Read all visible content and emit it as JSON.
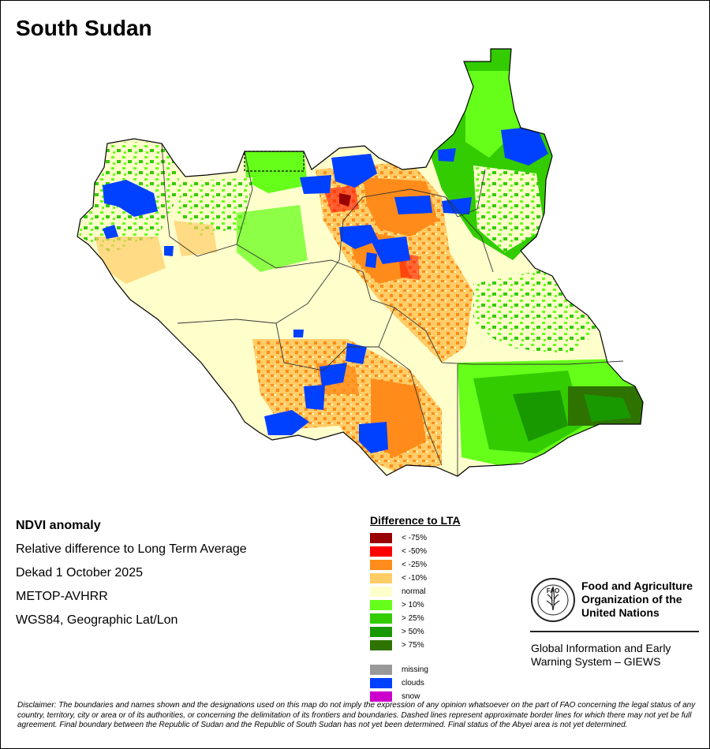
{
  "title": "South Sudan",
  "info": {
    "heading": "NDVI anomaly",
    "subtitle": "Relative difference to Long Term Average",
    "period": "Dekad 1 October 2025",
    "sensor": "METOP-AVHRR",
    "projection": "WGS84, Geographic Lat/Lon"
  },
  "legend": {
    "title": "Difference to LTA",
    "classes": [
      {
        "label": "< -75%",
        "color": "#990000"
      },
      {
        "label": "< -50%",
        "color": "#ff0000"
      },
      {
        "label": "< -25%",
        "color": "#ff8c1a"
      },
      {
        "label": "< -10%",
        "color": "#ffcc66"
      },
      {
        "label": "normal",
        "color": "#ffffcc"
      },
      {
        "label": "> 10%",
        "color": "#66ff1a"
      },
      {
        "label": "> 25%",
        "color": "#33cc00"
      },
      {
        "label": "> 50%",
        "color": "#199900"
      },
      {
        "label": "> 75%",
        "color": "#2e7300"
      }
    ],
    "special": [
      {
        "label": "missing",
        "color": "#999999"
      },
      {
        "label": "clouds",
        "color": "#0040ff"
      },
      {
        "label": "snow",
        "color": "#cc00cc"
      }
    ]
  },
  "org": {
    "name_line1": "Food and Agriculture",
    "name_line2": "Organization of the",
    "name_line3": "United Nations",
    "logo_text": "FAO",
    "system_line1": "Global Information and Early",
    "system_line2": "Warning System – GIEWS"
  },
  "disclaimer": "Disclaimer: The boundaries and names shown and the designations used on this map do not imply the expression of any opinion whatsoever on the part of FAO concerning the legal status of any country, territory, city or area or of its authorities, or concerning the delimitation of its frontiers and boundaries. Dashed lines represent approximate border lines for which there may not yet be full agreement.  Final boundary between the Republic of Sudan and the Republic of South Sudan has not yet been determined. Final status of the Abyei area is not yet determined."
}
